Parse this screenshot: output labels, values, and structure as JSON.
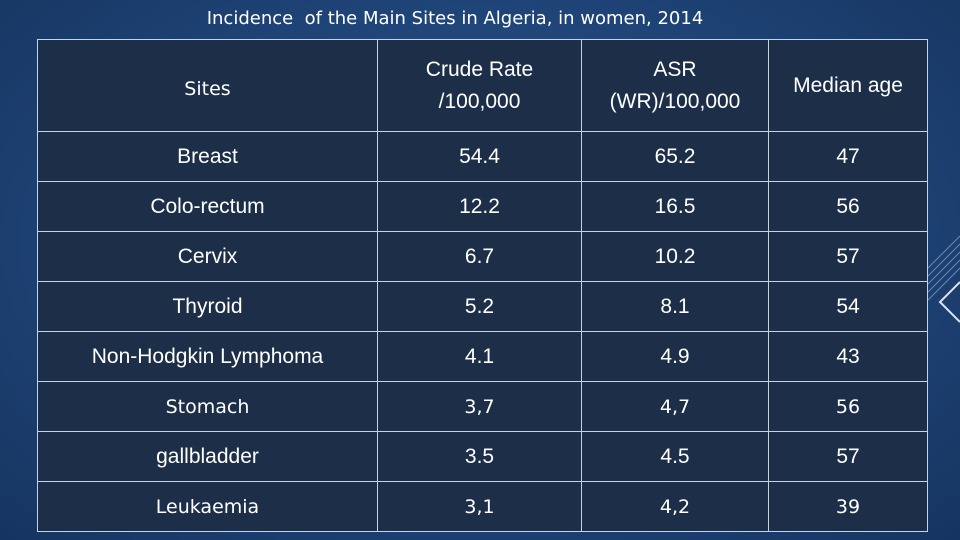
{
  "title": "Incidence  of the Main Sites in Algeria, in women, 2014",
  "table": {
    "headers": {
      "sites": "Sites",
      "crude_line1": "Crude Rate",
      "crude_line2": "/100,000",
      "asr_line1": "ASR",
      "asr_line2": "(WR)/100,000",
      "median": "Median age"
    },
    "rows": [
      {
        "site": "Breast",
        "crude": "54.4",
        "asr": "65.2",
        "median": "47"
      },
      {
        "site": "Colo-rectum",
        "crude": "12.2",
        "asr": "16.5",
        "median": "56"
      },
      {
        "site": "Cervix",
        "crude": "6.7",
        "asr": "10.2",
        "median": "57"
      },
      {
        "site": "Thyroid",
        "crude": "5.2",
        "asr": "8.1",
        "median": "54"
      },
      {
        "site": "Non-Hodgkin Lymphoma",
        "crude": "4.1",
        "asr": "4.9",
        "median": "43"
      },
      {
        "site": "Stomach",
        "crude": "3,7",
        "asr": "4,7",
        "median": "56"
      },
      {
        "site": "gallbladder",
        "crude": "3.5",
        "asr": "4.5",
        "median": "57"
      },
      {
        "site": "Leukaemia",
        "crude": "3,1",
        "asr": "4,2",
        "median": "39"
      }
    ]
  }
}
